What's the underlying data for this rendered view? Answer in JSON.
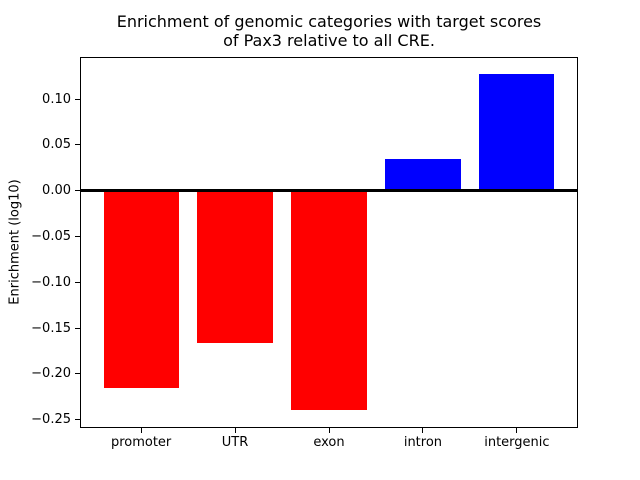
{
  "chart_data": {
    "type": "bar",
    "title": "Enrichment of genomic categories with target scores\nof Pax3 relative to all CRE.",
    "xlabel": "",
    "ylabel": "Enrichment (log10)",
    "categories": [
      "promoter",
      "UTR",
      "exon",
      "intron",
      "intergenic"
    ],
    "values": [
      -0.215,
      -0.166,
      -0.239,
      0.035,
      0.128
    ],
    "bar_colors": [
      "#ff0000",
      "#ff0000",
      "#ff0000",
      "#0000ff",
      "#0000ff"
    ],
    "negative_color": "#ff0000",
    "positive_color": "#0000ff",
    "ylim": [
      -0.258,
      0.145
    ],
    "yticks": [
      0.1,
      0.05,
      0.0,
      -0.05,
      -0.1,
      -0.15,
      -0.2,
      -0.25
    ],
    "ytick_labels": [
      "0.10",
      "0.05",
      "0.00",
      "−0.05",
      "−0.10",
      "−0.15",
      "−0.20",
      "−0.25"
    ],
    "zero_line": true,
    "grid": false,
    "legend": "none",
    "background": "#ffffff",
    "axis_color": "#000000"
  }
}
